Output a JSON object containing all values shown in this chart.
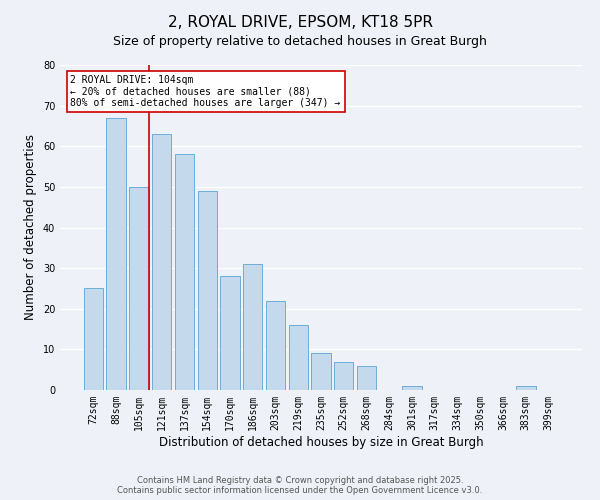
{
  "title": "2, ROYAL DRIVE, EPSOM, KT18 5PR",
  "subtitle": "Size of property relative to detached houses in Great Burgh",
  "xlabel": "Distribution of detached houses by size in Great Burgh",
  "ylabel": "Number of detached properties",
  "bar_labels": [
    "72sqm",
    "88sqm",
    "105sqm",
    "121sqm",
    "137sqm",
    "154sqm",
    "170sqm",
    "186sqm",
    "203sqm",
    "219sqm",
    "235sqm",
    "252sqm",
    "268sqm",
    "284sqm",
    "301sqm",
    "317sqm",
    "334sqm",
    "350sqm",
    "366sqm",
    "383sqm",
    "399sqm"
  ],
  "bar_values": [
    25,
    67,
    50,
    63,
    58,
    49,
    28,
    31,
    22,
    16,
    9,
    7,
    6,
    0,
    1,
    0,
    0,
    0,
    0,
    1,
    0
  ],
  "bar_color": "#c5d9ed",
  "bar_edge_color": "#6aaed6",
  "highlight_index": 2,
  "highlight_line_color": "#cc0000",
  "annotation_title": "2 ROYAL DRIVE: 104sqm",
  "annotation_line1": "← 20% of detached houses are smaller (88)",
  "annotation_line2": "80% of semi-detached houses are larger (347) →",
  "annotation_box_color": "#ffffff",
  "annotation_box_edge": "#cc0000",
  "ylim": [
    0,
    80
  ],
  "yticks": [
    0,
    10,
    20,
    30,
    40,
    50,
    60,
    70,
    80
  ],
  "bg_color": "#eef2f8",
  "footer1": "Contains HM Land Registry data © Crown copyright and database right 2025.",
  "footer2": "Contains public sector information licensed under the Open Government Licence v3.0.",
  "title_fontsize": 11,
  "subtitle_fontsize": 9,
  "axis_label_fontsize": 8.5,
  "tick_fontsize": 7,
  "annotation_fontsize": 7,
  "footer_fontsize": 6
}
